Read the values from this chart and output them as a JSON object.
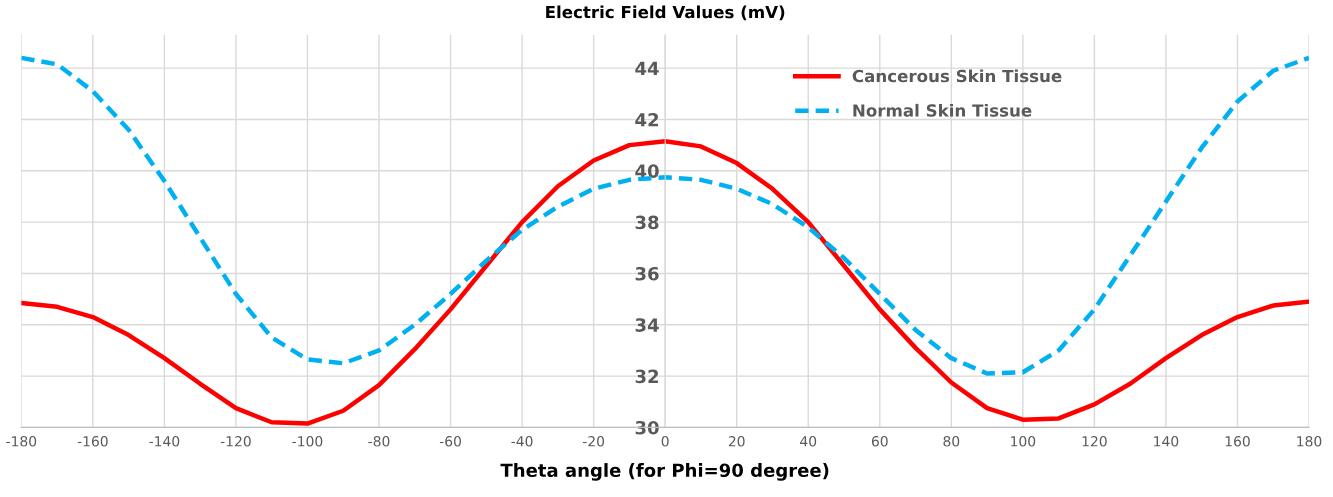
{
  "chart_data": {
    "type": "line",
    "title": "Electric Field Values (mV)",
    "xlabel": "Theta angle (for Phi=90 degree)",
    "x": [
      -180,
      -170,
      -160,
      -150,
      -140,
      -130,
      -120,
      -110,
      -100,
      -90,
      -80,
      -70,
      -60,
      -50,
      -40,
      -30,
      -20,
      -10,
      0,
      10,
      20,
      30,
      40,
      50,
      60,
      70,
      80,
      90,
      100,
      110,
      120,
      130,
      140,
      150,
      160,
      170,
      180
    ],
    "series": [
      {
        "name": "Cancerous Skin Tissue",
        "color": "#ff0000",
        "line_style": "solid",
        "values": [
          34.85,
          34.7,
          34.3,
          33.6,
          32.7,
          31.7,
          30.75,
          30.2,
          30.15,
          30.65,
          31.65,
          33.05,
          34.6,
          36.3,
          38.0,
          39.4,
          40.4,
          41.0,
          41.15,
          40.95,
          40.3,
          39.3,
          38.0,
          36.3,
          34.6,
          33.1,
          31.75,
          30.75,
          30.3,
          30.35,
          30.9,
          31.7,
          32.7,
          33.6,
          34.3,
          34.75,
          34.9
        ]
      },
      {
        "name": "Normal Skin Tissue",
        "color": "#00b0f0",
        "line_style": "dashed",
        "values": [
          44.4,
          44.15,
          43.1,
          41.6,
          39.6,
          37.4,
          35.2,
          33.5,
          32.65,
          32.5,
          33.0,
          34.0,
          35.2,
          36.5,
          37.7,
          38.6,
          39.3,
          39.65,
          39.75,
          39.65,
          39.3,
          38.7,
          37.8,
          36.6,
          35.2,
          33.8,
          32.7,
          32.1,
          32.15,
          33.0,
          34.6,
          36.7,
          38.8,
          40.9,
          42.7,
          43.9,
          44.4
        ]
      }
    ],
    "xlim": [
      -180,
      180
    ],
    "ylim": [
      30,
      45.3
    ],
    "xticks": [
      -180,
      -160,
      -140,
      -120,
      -100,
      -80,
      -60,
      -40,
      -20,
      0,
      20,
      40,
      60,
      80,
      100,
      120,
      140,
      160,
      180
    ],
    "yticks": [
      30,
      32,
      34,
      36,
      38,
      40,
      42,
      44
    ],
    "grid": true,
    "legend": "top right",
    "marker": "none"
  }
}
